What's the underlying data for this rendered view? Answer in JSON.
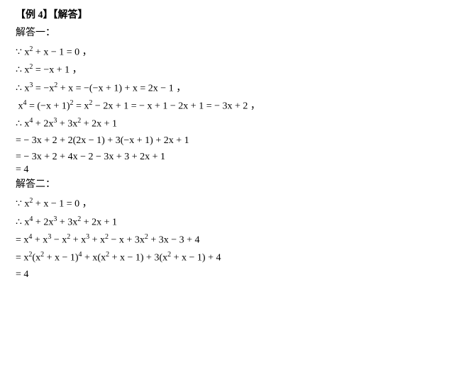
{
  "heading": "【例 4】【解答】",
  "label_solution1": "解答一：",
  "label_solution2": "解答二：",
  "s1": {
    "l1_a": "∵ x",
    "l1_b": " + x − 1 = 0 ，",
    "l2_a": "∴ x",
    "l2_b": " = −x + 1 ，",
    "l3_a": "∴ x",
    "l3_b": " = −x",
    "l3_c": " + x = −(−x + 1) + x = 2x − 1 ，",
    "l4_a": " x",
    "l4_b": " = (−x + 1)",
    "l4_c": " = x",
    "l4_d": " − 2x + 1 = − x + 1 − 2x + 1 = − 3x + 2 ，",
    "l5_a": "∴ x",
    "l5_b": " + 2x",
    "l5_c": " + 3x",
    "l5_d": " + 2x + 1",
    "l6": "= − 3x + 2 + 2(2x − 1) + 3(−x + 1) + 2x + 1",
    "l7": "= − 3x + 2 + 4x − 2 − 3x + 3 + 2x + 1",
    "l8": "= 4"
  },
  "s2": {
    "l1_a": "∵ x",
    "l1_b": " + x − 1 = 0 ，",
    "l2_a": "∴ x",
    "l2_b": " + 2x",
    "l2_c": " + 3x",
    "l2_d": " + 2x + 1",
    "l3_a": "= x",
    "l3_b": " + x",
    "l3_c": " − x",
    "l3_d": " + x",
    "l3_e": " + x",
    "l3_f": " − x + 3x",
    "l3_g": " + 3x − 3 + 4",
    "l4_a": "= x",
    "l4_b": "(x",
    "l4_c": " + x − 1)",
    "l4_d": " + x(x",
    "l4_e": " + x − 1) + 3(x",
    "l4_f": " + x − 1) + 4",
    "l5": "= 4"
  }
}
